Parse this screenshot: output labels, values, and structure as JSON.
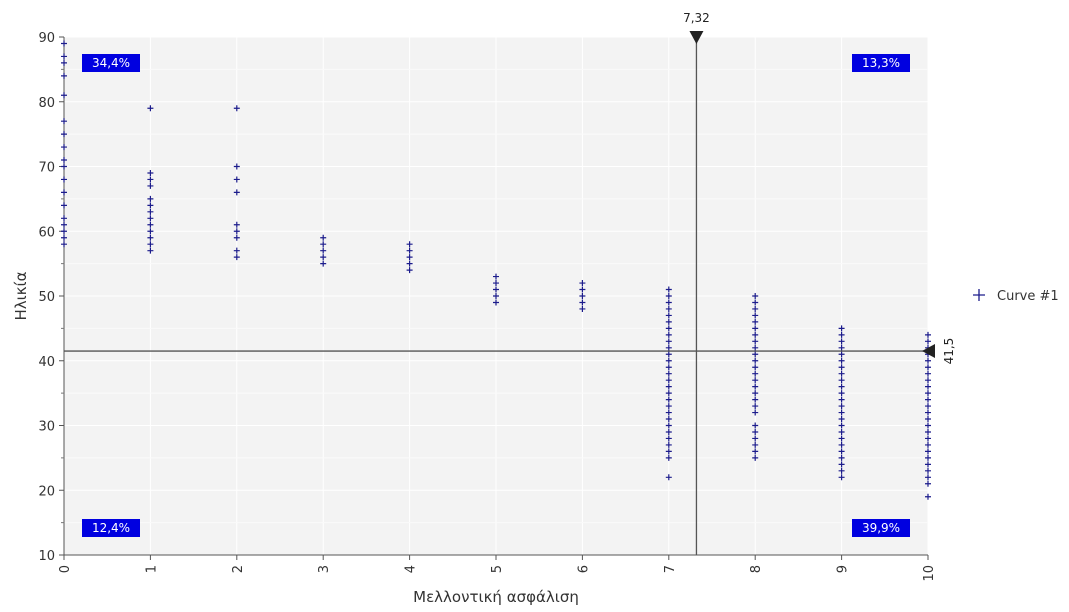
{
  "colors": {
    "plot_background": "#f3f3f3",
    "grid": "#ffffff",
    "marker": "#1c1c8c",
    "quadrant_box": "#0000e0",
    "cursor_line": "#555555"
  },
  "chart_data": {
    "type": "scatter",
    "xlabel": "Μελλοντική ασφάλιση",
    "ylabel": "Ηλικία",
    "xlim": [
      0,
      10
    ],
    "ylim": [
      10,
      90
    ],
    "x_ticks": [
      0,
      1,
      2,
      3,
      4,
      5,
      6,
      7,
      8,
      9,
      10
    ],
    "y_ticks": [
      10,
      20,
      30,
      40,
      50,
      60,
      70,
      80,
      90
    ],
    "grid": true,
    "marker": "plus",
    "legend_position": "right",
    "series": [
      {
        "name": "Curve #1",
        "points": [
          [
            0,
            58
          ],
          [
            0,
            59
          ],
          [
            0,
            60
          ],
          [
            0,
            61
          ],
          [
            0,
            62
          ],
          [
            0,
            64
          ],
          [
            0,
            66
          ],
          [
            0,
            68
          ],
          [
            0,
            70
          ],
          [
            0,
            71
          ],
          [
            0,
            73
          ],
          [
            0,
            75
          ],
          [
            0,
            77
          ],
          [
            0,
            81
          ],
          [
            0,
            84
          ],
          [
            0,
            86
          ],
          [
            0,
            87
          ],
          [
            0,
            89
          ],
          [
            1,
            57
          ],
          [
            1,
            58
          ],
          [
            1,
            59
          ],
          [
            1,
            60
          ],
          [
            1,
            61
          ],
          [
            1,
            62
          ],
          [
            1,
            63
          ],
          [
            1,
            64
          ],
          [
            1,
            65
          ],
          [
            1,
            67
          ],
          [
            1,
            68
          ],
          [
            1,
            69
          ],
          [
            1,
            79
          ],
          [
            2,
            56
          ],
          [
            2,
            57
          ],
          [
            2,
            59
          ],
          [
            2,
            60
          ],
          [
            2,
            61
          ],
          [
            2,
            66
          ],
          [
            2,
            68
          ],
          [
            2,
            70
          ],
          [
            2,
            79
          ],
          [
            3,
            55
          ],
          [
            3,
            56
          ],
          [
            3,
            57
          ],
          [
            3,
            58
          ],
          [
            3,
            59
          ],
          [
            4,
            54
          ],
          [
            4,
            55
          ],
          [
            4,
            56
          ],
          [
            4,
            57
          ],
          [
            4,
            58
          ],
          [
            5,
            49
          ],
          [
            5,
            50
          ],
          [
            5,
            51
          ],
          [
            5,
            52
          ],
          [
            5,
            53
          ],
          [
            6,
            48
          ],
          [
            6,
            49
          ],
          [
            6,
            50
          ],
          [
            6,
            51
          ],
          [
            6,
            52
          ],
          [
            7,
            22
          ],
          [
            7,
            25
          ],
          [
            7,
            26
          ],
          [
            7,
            27
          ],
          [
            7,
            28
          ],
          [
            7,
            29
          ],
          [
            7,
            30
          ],
          [
            7,
            31
          ],
          [
            7,
            32
          ],
          [
            7,
            33
          ],
          [
            7,
            34
          ],
          [
            7,
            35
          ],
          [
            7,
            36
          ],
          [
            7,
            37
          ],
          [
            7,
            38
          ],
          [
            7,
            39
          ],
          [
            7,
            40
          ],
          [
            7,
            41
          ],
          [
            7,
            42
          ],
          [
            7,
            43
          ],
          [
            7,
            44
          ],
          [
            7,
            45
          ],
          [
            7,
            46
          ],
          [
            7,
            47
          ],
          [
            7,
            48
          ],
          [
            7,
            49
          ],
          [
            7,
            50
          ],
          [
            7,
            51
          ],
          [
            8,
            25
          ],
          [
            8,
            26
          ],
          [
            8,
            27
          ],
          [
            8,
            28
          ],
          [
            8,
            29
          ],
          [
            8,
            30
          ],
          [
            8,
            32
          ],
          [
            8,
            33
          ],
          [
            8,
            34
          ],
          [
            8,
            35
          ],
          [
            8,
            36
          ],
          [
            8,
            37
          ],
          [
            8,
            38
          ],
          [
            8,
            39
          ],
          [
            8,
            40
          ],
          [
            8,
            41
          ],
          [
            8,
            42
          ],
          [
            8,
            43
          ],
          [
            8,
            44
          ],
          [
            8,
            45
          ],
          [
            8,
            46
          ],
          [
            8,
            47
          ],
          [
            8,
            48
          ],
          [
            8,
            49
          ],
          [
            8,
            50
          ],
          [
            9,
            22
          ],
          [
            9,
            23
          ],
          [
            9,
            24
          ],
          [
            9,
            25
          ],
          [
            9,
            26
          ],
          [
            9,
            27
          ],
          [
            9,
            28
          ],
          [
            9,
            29
          ],
          [
            9,
            30
          ],
          [
            9,
            31
          ],
          [
            9,
            32
          ],
          [
            9,
            33
          ],
          [
            9,
            34
          ],
          [
            9,
            35
          ],
          [
            9,
            36
          ],
          [
            9,
            37
          ],
          [
            9,
            38
          ],
          [
            9,
            39
          ],
          [
            9,
            40
          ],
          [
            9,
            41
          ],
          [
            9,
            42
          ],
          [
            9,
            43
          ],
          [
            9,
            44
          ],
          [
            9,
            45
          ],
          [
            10,
            19
          ],
          [
            10,
            21
          ],
          [
            10,
            22
          ],
          [
            10,
            23
          ],
          [
            10,
            24
          ],
          [
            10,
            25
          ],
          [
            10,
            26
          ],
          [
            10,
            27
          ],
          [
            10,
            28
          ],
          [
            10,
            29
          ],
          [
            10,
            30
          ],
          [
            10,
            31
          ],
          [
            10,
            32
          ],
          [
            10,
            33
          ],
          [
            10,
            34
          ],
          [
            10,
            35
          ],
          [
            10,
            36
          ],
          [
            10,
            37
          ],
          [
            10,
            38
          ],
          [
            10,
            39
          ],
          [
            10,
            40
          ],
          [
            10,
            41
          ],
          [
            10,
            42
          ],
          [
            10,
            43
          ],
          [
            10,
            44
          ]
        ]
      }
    ],
    "cursors": {
      "x": {
        "value": 7.32,
        "label": "7,32"
      },
      "y": {
        "value": 41.5,
        "label": "41,5"
      }
    },
    "quadrant_labels": {
      "top_left": "34,4%",
      "top_right": "13,3%",
      "bottom_left": "12,4%",
      "bottom_right": "39,9%"
    }
  }
}
